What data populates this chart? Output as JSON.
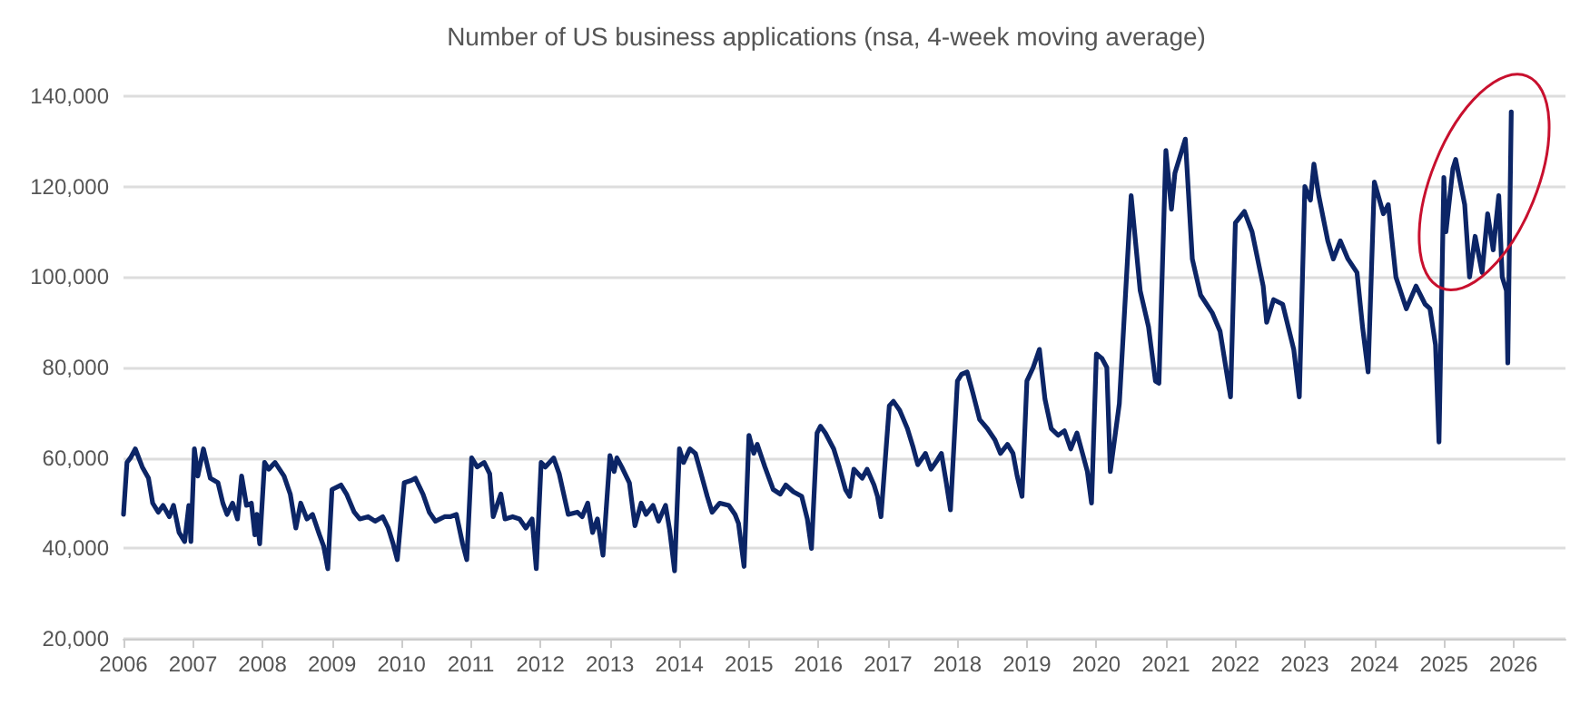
{
  "chart_data": {
    "type": "line",
    "title": "Number of US business applications (nsa, 4-week moving average)",
    "x": [
      2006.0,
      2006.05,
      2006.1,
      2006.17,
      2006.27,
      2006.36,
      2006.42,
      2006.5,
      2006.57,
      2006.66,
      2006.72,
      2006.8,
      2006.88,
      2006.94,
      2006.97,
      2007.02,
      2007.07,
      2007.15,
      2007.25,
      2007.36,
      2007.43,
      2007.49,
      2007.57,
      2007.64,
      2007.7,
      2007.77,
      2007.84,
      2007.89,
      2007.92,
      2007.96,
      2008.03,
      2008.09,
      2008.18,
      2008.31,
      2008.4,
      2008.48,
      2008.55,
      2008.64,
      2008.72,
      2008.82,
      2008.88,
      2008.94,
      2009.0,
      2009.13,
      2009.21,
      2009.32,
      2009.4,
      2009.52,
      2009.62,
      2009.73,
      2009.81,
      2009.88,
      2009.94,
      2010.04,
      2010.14,
      2010.2,
      2010.31,
      2010.4,
      2010.49,
      2010.62,
      2010.7,
      2010.79,
      2010.88,
      2010.94,
      2011.01,
      2011.09,
      2011.19,
      2011.27,
      2011.32,
      2011.43,
      2011.49,
      2011.6,
      2011.7,
      2011.79,
      2011.88,
      2011.94,
      2012.01,
      2012.07,
      2012.19,
      2012.27,
      2012.4,
      2012.53,
      2012.6,
      2012.68,
      2012.75,
      2012.82,
      2012.9,
      2013.0,
      2013.06,
      2013.1,
      2013.17,
      2013.28,
      2013.36,
      2013.45,
      2013.52,
      2013.62,
      2013.7,
      2013.8,
      2013.86,
      2013.93,
      2014.0,
      2014.06,
      2014.15,
      2014.23,
      2014.32,
      2014.4,
      2014.47,
      2014.58,
      2014.71,
      2014.8,
      2014.85,
      2014.93,
      2015.0,
      2015.07,
      2015.12,
      2015.23,
      2015.35,
      2015.45,
      2015.53,
      2015.64,
      2015.76,
      2015.84,
      2015.9,
      2015.98,
      2016.03,
      2016.1,
      2016.22,
      2016.3,
      2016.39,
      2016.45,
      2016.51,
      2016.63,
      2016.7,
      2016.8,
      2016.85,
      2016.9,
      2017.02,
      2017.08,
      2017.17,
      2017.28,
      2017.36,
      2017.43,
      2017.54,
      2017.62,
      2017.71,
      2017.77,
      2017.84,
      2017.9,
      2018.0,
      2018.06,
      2018.14,
      2018.22,
      2018.32,
      2018.43,
      2018.54,
      2018.62,
      2018.72,
      2018.8,
      2018.86,
      2018.93,
      2019.0,
      2019.09,
      2019.18,
      2019.26,
      2019.35,
      2019.45,
      2019.54,
      2019.63,
      2019.72,
      2019.8,
      2019.87,
      2019.93,
      2020.0,
      2020.08,
      2020.15,
      2020.2,
      2020.33,
      2020.47,
      2020.5,
      2020.63,
      2020.75,
      2020.85,
      2020.9,
      2021.0,
      2021.08,
      2021.13,
      2021.28,
      2021.38,
      2021.5,
      2021.67,
      2021.78,
      2021.93,
      2022.0,
      2022.13,
      2022.24,
      2022.4,
      2022.45,
      2022.55,
      2022.68,
      2022.84,
      2022.92,
      2023.0,
      2023.08,
      2023.13,
      2023.2,
      2023.33,
      2023.41,
      2023.51,
      2023.62,
      2023.75,
      2023.83,
      2023.91,
      2024.0,
      2024.13,
      2024.2,
      2024.31,
      2024.46,
      2024.6,
      2024.73,
      2024.8,
      2024.88,
      2024.93,
      2025.0,
      2025.03,
      2025.13,
      2025.17,
      2025.3,
      2025.37,
      2025.45,
      2025.55,
      2025.63,
      2025.71,
      2025.79,
      2025.84,
      2025.9,
      2025.92,
      2025.97
    ],
    "values": [
      47500,
      59000,
      60000,
      62000,
      58000,
      55500,
      50000,
      48000,
      49500,
      47000,
      49500,
      43500,
      41500,
      49500,
      41500,
      62000,
      56000,
      62000,
      55500,
      54500,
      50000,
      47500,
      50000,
      46500,
      56000,
      49500,
      50000,
      43000,
      47500,
      41000,
      59000,
      57500,
      59000,
      56000,
      52000,
      44500,
      50000,
      46500,
      47500,
      43000,
      40500,
      35500,
      53000,
      54000,
      52000,
      48000,
      46500,
      47000,
      46000,
      47000,
      44500,
      41000,
      37500,
      54500,
      55000,
      55500,
      52000,
      48000,
      46000,
      47000,
      47000,
      47500,
      41000,
      37500,
      60000,
      58000,
      59000,
      56500,
      47000,
      52000,
      46500,
      47000,
      46500,
      44500,
      46500,
      35500,
      59000,
      58000,
      60000,
      56500,
      47500,
      48000,
      47000,
      50000,
      43500,
      46500,
      38500,
      60500,
      57000,
      60000,
      58000,
      54500,
      45000,
      50000,
      47500,
      49500,
      46000,
      49500,
      44000,
      35000,
      62000,
      59000,
      62000,
      61000,
      56000,
      51500,
      48000,
      50000,
      49500,
      47500,
      45500,
      36000,
      65000,
      61000,
      63000,
      58000,
      53000,
      52000,
      54000,
      52500,
      51500,
      46500,
      40000,
      65500,
      67000,
      65500,
      62000,
      58000,
      53000,
      51500,
      57500,
      55500,
      57500,
      54000,
      51500,
      47000,
      71500,
      72500,
      70500,
      66500,
      62500,
      58500,
      61000,
      57500,
      59500,
      61000,
      54500,
      48500,
      77000,
      78500,
      79000,
      74500,
      68500,
      66500,
      64000,
      61000,
      63000,
      61000,
      56000,
      51500,
      77000,
      80000,
      84000,
      73000,
      66500,
      65000,
      66000,
      62000,
      65500,
      61000,
      57000,
      50000,
      83000,
      82000,
      80000,
      57000,
      72000,
      110000,
      118000,
      97000,
      89000,
      77000,
      76500,
      128000,
      115000,
      123000,
      130500,
      104000,
      96000,
      92000,
      88000,
      73500,
      112000,
      114500,
      110000,
      98000,
      90000,
      95000,
      94000,
      84000,
      73500,
      120000,
      117000,
      125000,
      118000,
      108000,
      104000,
      108000,
      104000,
      101000,
      89000,
      79000,
      121000,
      114000,
      116000,
      100000,
      93000,
      98000,
      94000,
      93000,
      85000,
      63500,
      122000,
      110000,
      124000,
      126000,
      116000,
      100000,
      109000,
      101000,
      114000,
      106000,
      118000,
      100000,
      97000,
      81000,
      136500
    ],
    "color": "#0c2566",
    "marker": "none",
    "line_style": "solid",
    "xlim": [
      2006,
      2026.75
    ],
    "xticks": [
      2006,
      2007,
      2008,
      2009,
      2010,
      2011,
      2012,
      2013,
      2014,
      2015,
      2016,
      2017,
      2018,
      2019,
      2020,
      2021,
      2022,
      2023,
      2024,
      2025,
      2026
    ],
    "ylim": [
      20000,
      140000
    ],
    "yticks": [
      {
        "value": 20000,
        "label": "20,000"
      },
      {
        "value": 40000,
        "label": "40,000"
      },
      {
        "value": 60000,
        "label": "60,000"
      },
      {
        "value": 80000,
        "label": "80,000"
      },
      {
        "value": 100000,
        "label": "100,000"
      },
      {
        "value": 120000,
        "label": "120,000"
      },
      {
        "value": 140000,
        "label": "140,000"
      }
    ],
    "grid": "y"
  }
}
